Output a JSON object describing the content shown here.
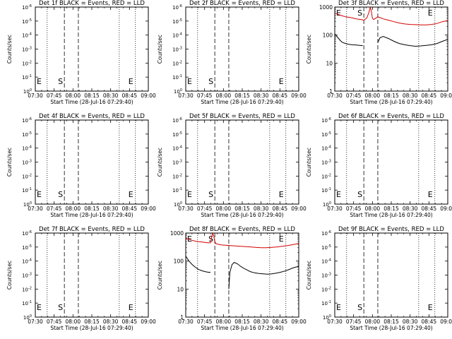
{
  "colors": {
    "events": "#000000",
    "lld": "#d40000",
    "axis": "#000000"
  },
  "shared": {
    "x_ticks": [
      "07:30",
      "07:45",
      "08:00",
      "08:15",
      "08:30",
      "08:45",
      "09:00"
    ],
    "xlabel": "Start Time (28-Jul-16 07:29:40)",
    "ylabel": "Counts/sec",
    "empty_y_ticks": [
      {
        "base": "10",
        "exp": "-6"
      },
      {
        "base": "10",
        "exp": "-5"
      },
      {
        "base": "10",
        "exp": "-4"
      },
      {
        "base": "10",
        "exp": "-3"
      },
      {
        "base": "10",
        "exp": "-2"
      },
      {
        "base": "10",
        "exp": "-1"
      },
      {
        "base": "10",
        "exp": "0"
      }
    ],
    "data_y_ticks": [
      "1000",
      "100",
      "10",
      "1"
    ],
    "markers": {
      "left": "E",
      "start": "S",
      "end": "E"
    },
    "x_range_min": [
      0,
      105
    ],
    "dotted_lines_min": [
      0,
      11,
      78,
      93
    ],
    "dashed_lines_min": [
      27,
      40
    ]
  },
  "chart_data": [
    {
      "type": "line",
      "title": "Det 1f BLACK = Events, RED = LLD",
      "has_data": false
    },
    {
      "type": "line",
      "title": "Det 2f BLACK = Events, RED = LLD",
      "has_data": false
    },
    {
      "type": "line",
      "title": "Det 3f BLACK = Events, RED = LLD",
      "has_data": true,
      "yscale": "log",
      "ylim": [
        1,
        1000
      ],
      "series": [
        {
          "color": "lld",
          "x": [
            0,
            3,
            6,
            10,
            15,
            20,
            24,
            26,
            27,
            28,
            30,
            32,
            33,
            34,
            35,
            36,
            38,
            40,
            42,
            45,
            50,
            55,
            60,
            65,
            70,
            75,
            80,
            85,
            90,
            95,
            100,
            105
          ],
          "y": [
            600,
            550,
            500,
            450,
            420,
            380,
            360,
            350,
            340,
            360,
            420,
            700,
            1000,
            700,
            400,
            360,
            400,
            450,
            420,
            380,
            340,
            300,
            270,
            250,
            240,
            235,
            230,
            230,
            240,
            260,
            300,
            330
          ]
        },
        {
          "color": "events",
          "segments": [
            {
              "x": [
                0,
                3,
                5,
                7,
                10,
                13,
                16,
                20,
                23,
                26
              ],
              "y": [
                110,
                80,
                65,
                55,
                50,
                47,
                45,
                44,
                43,
                42
              ]
            },
            {
              "x": [
                40,
                42,
                45,
                50,
                55,
                60,
                65,
                70,
                75,
                80,
                85,
                90,
                95,
                100,
                105
              ],
              "y": [
                55,
                80,
                90,
                75,
                60,
                50,
                45,
                42,
                40,
                41,
                43,
                45,
                50,
                60,
                70
              ]
            }
          ]
        }
      ]
    },
    {
      "type": "line",
      "title": "Det 4f BLACK = Events, RED = LLD",
      "has_data": false
    },
    {
      "type": "line",
      "title": "Det 5f BLACK = Events, RED = LLD",
      "has_data": false
    },
    {
      "type": "line",
      "title": "Det 6f BLACK = Events, RED = LLD",
      "has_data": false
    },
    {
      "type": "line",
      "title": "Det 7f BLACK = Events, RED = LLD",
      "has_data": false
    },
    {
      "type": "line",
      "title": "Det 8f BLACK = Events, RED = LLD",
      "has_data": true,
      "yscale": "log",
      "ylim": [
        1,
        1000
      ],
      "series": [
        {
          "color": "lld",
          "x": [
            0,
            3,
            6,
            10,
            15,
            20,
            23,
            24,
            25,
            26,
            27,
            28,
            30,
            33,
            36,
            40,
            45,
            50,
            55,
            60,
            65,
            70,
            75,
            80,
            85,
            90,
            95,
            100,
            105
          ],
          "y": [
            650,
            600,
            550,
            500,
            480,
            450,
            450,
            700,
            1000,
            800,
            500,
            420,
            400,
            380,
            370,
            360,
            350,
            340,
            330,
            320,
            310,
            300,
            300,
            310,
            320,
            340,
            360,
            390,
            420
          ]
        },
        {
          "color": "events",
          "segments": [
            {
              "x": [
                0,
                3,
                6,
                9,
                12,
                15,
                18,
                21,
                23
              ],
              "y": [
                150,
                100,
                75,
                60,
                50,
                45,
                42,
                40,
                40
              ]
            },
            {
              "x": [
                40,
                41,
                43,
                45,
                48,
                51,
                54,
                57,
                60,
                64,
                68,
                72,
                76,
                80,
                84,
                88,
                92,
                96,
                100,
                105
              ],
              "y": [
                10,
                40,
                75,
                90,
                80,
                65,
                55,
                48,
                42,
                38,
                36,
                35,
                34,
                35,
                37,
                40,
                44,
                50,
                58,
                65
              ]
            }
          ]
        }
      ]
    },
    {
      "type": "line",
      "title": "Det 9f BLACK = Events, RED = LLD",
      "has_data": false
    }
  ]
}
